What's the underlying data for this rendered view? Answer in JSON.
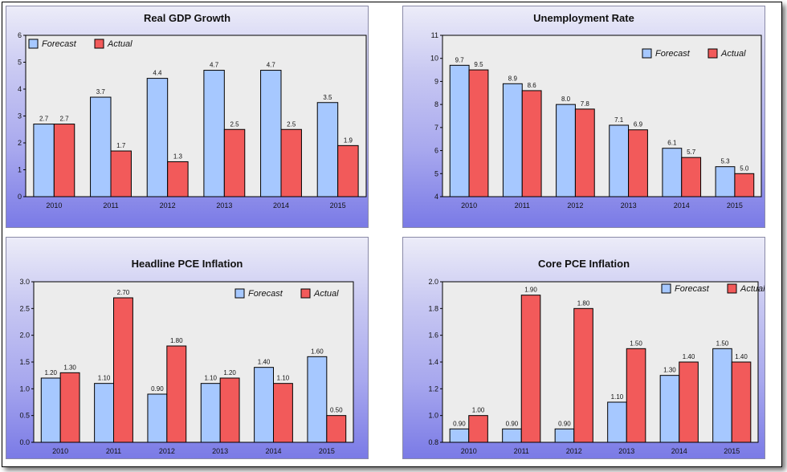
{
  "colors": {
    "forecast": "#a6c8ff",
    "actual": "#f25a5a",
    "plot_bg": "#ececec"
  },
  "legend": {
    "forecast": "Forecast",
    "actual": "Actual"
  },
  "chart_data": [
    {
      "type": "bar",
      "title": "Real GDP Growth",
      "categories": [
        "2010",
        "2011",
        "2012",
        "2013",
        "2014",
        "2015"
      ],
      "series": [
        {
          "name": "Forecast",
          "values": [
            2.7,
            3.7,
            4.4,
            4.7,
            4.7,
            3.5
          ]
        },
        {
          "name": "Actual",
          "values": [
            2.7,
            1.7,
            1.3,
            2.5,
            2.5,
            1.9
          ]
        }
      ],
      "data_labels": {
        "Forecast": [
          "2.7",
          "3.7",
          "4.4",
          "4.7",
          "4.7",
          "3.5"
        ],
        "Actual": [
          "2.7",
          "1.7",
          "1.3",
          "2.5",
          "2.5",
          "1.9"
        ]
      },
      "yticks": [
        "0",
        "1",
        "2",
        "3",
        "4",
        "5",
        "6"
      ],
      "ylim": [
        0,
        6
      ],
      "legend_position": "top-left",
      "xlabel": "",
      "ylabel": ""
    },
    {
      "type": "bar",
      "title": "Unemployment Rate",
      "categories": [
        "2010",
        "2011",
        "2012",
        "2013",
        "2014",
        "2015"
      ],
      "series": [
        {
          "name": "Forecast",
          "values": [
            9.7,
            8.9,
            8.0,
            7.1,
            6.1,
            5.3
          ]
        },
        {
          "name": "Actual",
          "values": [
            9.5,
            8.6,
            7.8,
            6.9,
            5.7,
            5.0
          ]
        }
      ],
      "data_labels": {
        "Forecast": [
          "9.7",
          "8.9",
          "8.0",
          "7.1",
          "6.1",
          "5.3"
        ],
        "Actual": [
          "9.5",
          "8.6",
          "7.8",
          "6.9",
          "5.7",
          "5.0"
        ]
      },
      "yticks": [
        "4",
        "5",
        "6",
        "7",
        "8",
        "9",
        "10",
        "11"
      ],
      "ylim": [
        4,
        11
      ],
      "legend_position": "top-right",
      "xlabel": "",
      "ylabel": ""
    },
    {
      "type": "bar",
      "title": "Headline PCE Inflation",
      "categories": [
        "2010",
        "2011",
        "2012",
        "2013",
        "2014",
        "2015"
      ],
      "series": [
        {
          "name": "Forecast",
          "values": [
            1.2,
            1.1,
            0.9,
            1.1,
            1.4,
            1.6
          ]
        },
        {
          "name": "Actual",
          "values": [
            1.3,
            2.7,
            1.8,
            1.2,
            1.1,
            0.5
          ]
        }
      ],
      "data_labels": {
        "Forecast": [
          "1.20",
          "1.10",
          "0.90",
          "1.10",
          "1.40",
          "1.60"
        ],
        "Actual": [
          "1.30",
          "2.70",
          "1.80",
          "1.20",
          "1.10",
          "0.50"
        ]
      },
      "yticks": [
        "0.0",
        "0.5",
        "1.0",
        "1.5",
        "2.0",
        "2.5",
        "3.0"
      ],
      "ylim": [
        0,
        3
      ],
      "legend_position": "top-right",
      "xlabel": "",
      "ylabel": ""
    },
    {
      "type": "bar",
      "title": "Core PCE Inflation",
      "categories": [
        "2010",
        "2011",
        "2012",
        "2013",
        "2014",
        "2015"
      ],
      "series": [
        {
          "name": "Forecast",
          "values": [
            0.9,
            0.9,
            0.9,
            1.1,
            1.3,
            1.5
          ]
        },
        {
          "name": "Actual",
          "values": [
            1.0,
            1.9,
            1.8,
            1.5,
            1.4,
            1.4
          ]
        }
      ],
      "data_labels": {
        "Forecast": [
          "0.90",
          "0.90",
          "0.90",
          "1.10",
          "1.30",
          "1.50"
        ],
        "Actual": [
          "1.00",
          "1.90",
          "1.80",
          "1.50",
          "1.40",
          "1.40"
        ]
      },
      "yticks": [
        "0.8",
        "1.0",
        "1.2",
        "1.4",
        "1.6",
        "1.8",
        "2.0"
      ],
      "ylim": [
        0.8,
        2.0
      ],
      "legend_position": "top-right",
      "xlabel": "",
      "ylabel": ""
    }
  ]
}
